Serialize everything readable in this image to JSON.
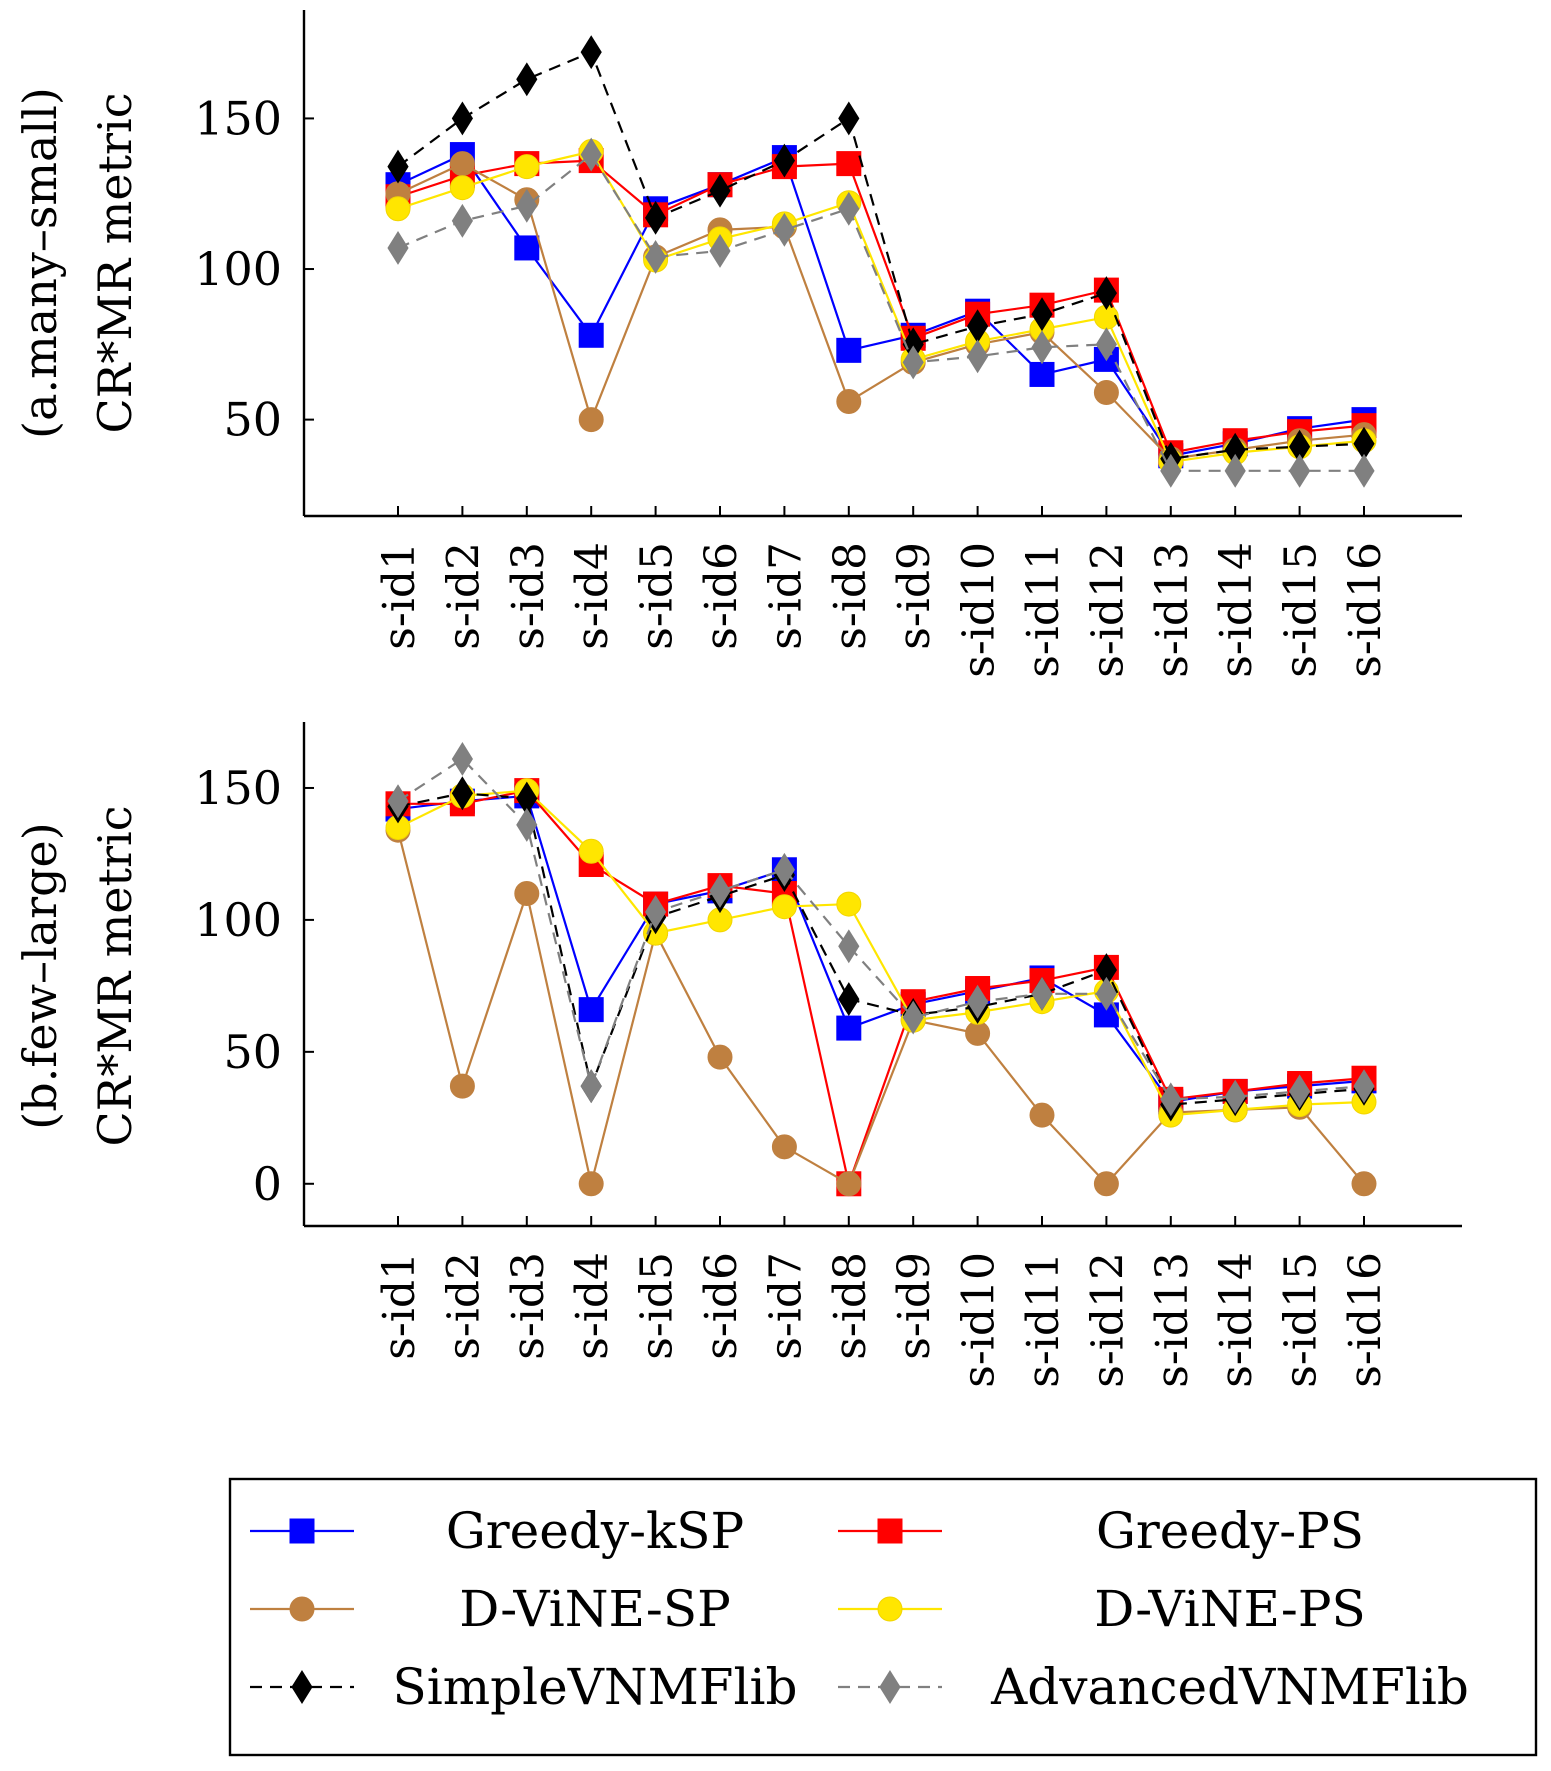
{
  "chart_data": [
    {
      "type": "line",
      "id": "a",
      "ylabel_line1": "(a.many–small)",
      "ylabel_line2": "CR*MR metric",
      "categories": [
        "s-id1",
        "s-id2",
        "s-id3",
        "s-id4",
        "s-id5",
        "s-id6",
        "s-id7",
        "s-id8",
        "s-id9",
        "s-id10",
        "s-id11",
        "s-id12",
        "s-id13",
        "s-id14",
        "s-id15",
        "s-id16"
      ],
      "ylim": [
        18,
        186
      ],
      "yticks": [
        50,
        100,
        150
      ],
      "series": [
        {
          "name": "Greedy-kSP",
          "values": [
            128,
            138,
            107,
            78,
            120,
            128,
            137,
            73,
            78,
            86,
            65,
            70,
            38,
            42,
            47,
            50
          ]
        },
        {
          "name": "Greedy-PS",
          "values": [
            124,
            131,
            135,
            136,
            118,
            128,
            134,
            135,
            77,
            85,
            88,
            93,
            39,
            43,
            46,
            48
          ]
        },
        {
          "name": "D-ViNE-SP",
          "values": [
            125,
            135,
            123,
            50,
            104,
            113,
            114,
            56,
            69,
            75,
            79,
            59,
            37,
            40,
            43,
            45
          ]
        },
        {
          "name": "D-ViNE-PS",
          "values": [
            120,
            127,
            134,
            139,
            103,
            110,
            115,
            122,
            70,
            76,
            80,
            84,
            36,
            39,
            41,
            43
          ]
        },
        {
          "name": "SimpleVNMFlib",
          "values": [
            134,
            150,
            163,
            172,
            117,
            126,
            136,
            150,
            75,
            81,
            85,
            92,
            37,
            40,
            41,
            42
          ]
        },
        {
          "name": "AdvancedVNMFlib",
          "values": [
            107,
            116,
            121,
            138,
            104,
            106,
            113,
            120,
            69,
            71,
            74,
            75,
            33,
            33,
            33,
            33
          ]
        }
      ]
    },
    {
      "type": "line",
      "id": "b",
      "ylabel_line1": "(b.few–large)",
      "ylabel_line2": "CR*MR metric",
      "categories": [
        "s-id1",
        "s-id2",
        "s-id3",
        "s-id4",
        "s-id5",
        "s-id6",
        "s-id7",
        "s-id8",
        "s-id9",
        "s-id10",
        "s-id11",
        "s-id12",
        "s-id13",
        "s-id14",
        "s-id15",
        "s-id16"
      ],
      "ylim": [
        -16,
        175
      ],
      "yticks": [
        0,
        50,
        100,
        150
      ],
      "series": [
        {
          "name": "Greedy-kSP",
          "values": [
            142,
            145,
            147,
            66,
            106,
            111,
            119,
            59,
            68,
            73,
            78,
            64,
            31,
            35,
            37,
            39
          ]
        },
        {
          "name": "Greedy-PS",
          "values": [
            144,
            144,
            149,
            121,
            106,
            113,
            110,
            0,
            69,
            74,
            77,
            82,
            32,
            35,
            38,
            40
          ]
        },
        {
          "name": "D-ViNE-SP",
          "values": [
            134,
            37,
            110,
            0,
            95,
            48,
            14,
            0,
            62,
            57,
            26,
            0,
            27,
            28,
            29,
            0
          ]
        },
        {
          "name": "D-ViNE-PS",
          "values": [
            135,
            147,
            149,
            126,
            95,
            100,
            105,
            106,
            62,
            65,
            69,
            73,
            26,
            28,
            30,
            31
          ]
        },
        {
          "name": "SimpleVNMFlib",
          "values": [
            143,
            148,
            146,
            37,
            101,
            109,
            117,
            70,
            64,
            67,
            72,
            81,
            30,
            32,
            34,
            36
          ]
        },
        {
          "name": "AdvancedVNMFlib",
          "values": [
            145,
            161,
            136,
            37,
            103,
            111,
            119,
            90,
            63,
            69,
            72,
            72,
            32,
            33,
            35,
            37
          ]
        }
      ]
    }
  ],
  "legend": [
    {
      "name": "Greedy-kSP",
      "color": "#0000ff",
      "marker": "square",
      "dash": false
    },
    {
      "name": "Greedy-PS",
      "color": "#ff0000",
      "marker": "square",
      "dash": false
    },
    {
      "name": "D-ViNE-SP",
      "color": "#bf8040",
      "marker": "circle",
      "dash": false
    },
    {
      "name": "D-ViNE-PS",
      "color": "#ffe600",
      "marker": "circle",
      "dash": false
    },
    {
      "name": "SimpleVNMFlib",
      "color": "#000000",
      "marker": "diamond",
      "dash": true
    },
    {
      "name": "AdvancedVNMFlib",
      "color": "#808080",
      "marker": "diamond",
      "dash": true
    }
  ]
}
